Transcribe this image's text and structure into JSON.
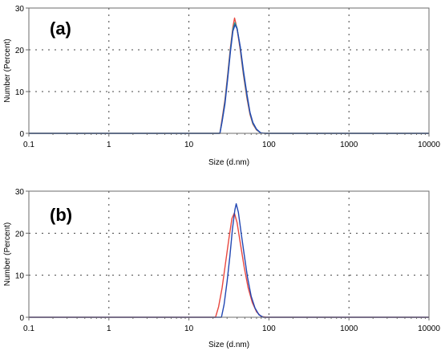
{
  "chart_data": [
    {
      "type": "line",
      "panel_label": "(a)",
      "xlabel": "Size (d.nm)",
      "ylabel": "Number (Percent)",
      "x_scale": "log",
      "xlim": [
        0.1,
        10000
      ],
      "ylim": [
        0,
        30
      ],
      "x_ticks": [
        "0.1",
        "1",
        "10",
        "100",
        "1000",
        "10000"
      ],
      "x_tick_values": [
        0.1,
        1,
        10,
        100,
        1000,
        10000
      ],
      "y_ticks": [
        "0",
        "10",
        "20",
        "30"
      ],
      "y_tick_values": [
        0,
        10,
        20,
        30
      ],
      "grid": true,
      "series": [
        {
          "color": "#e8473f",
          "points": [
            [
              0.1,
              0
            ],
            [
              20,
              0
            ],
            [
              24.4,
              0
            ],
            [
              26,
              3.5
            ],
            [
              28.2,
              8
            ],
            [
              30.5,
              14
            ],
            [
              33,
              20.5
            ],
            [
              35.5,
              25.5
            ],
            [
              37.2,
              27.6
            ],
            [
              40,
              25
            ],
            [
              43.8,
              20
            ],
            [
              48,
              14
            ],
            [
              53,
              8.5
            ],
            [
              58,
              4.5
            ],
            [
              63,
              2.2
            ],
            [
              70,
              0.8
            ],
            [
              79,
              0.1
            ],
            [
              90,
              0
            ],
            [
              10000,
              0
            ]
          ]
        },
        {
          "color": "#2a9d8f",
          "points": [
            [
              0.1,
              0
            ],
            [
              20,
              0
            ],
            [
              24.4,
              0
            ],
            [
              26,
              3
            ],
            [
              28.2,
              7.5
            ],
            [
              30.5,
              13.5
            ],
            [
              33,
              20
            ],
            [
              35.5,
              25
            ],
            [
              37.6,
              26.5
            ],
            [
              40,
              25.2
            ],
            [
              43.8,
              20.5
            ],
            [
              48,
              14.5
            ],
            [
              53,
              9
            ],
            [
              58,
              4.8
            ],
            [
              63,
              2.4
            ],
            [
              70,
              0.9
            ],
            [
              79,
              0.1
            ],
            [
              90,
              0
            ],
            [
              10000,
              0
            ]
          ]
        },
        {
          "color": "#2247b3",
          "points": [
            [
              0.1,
              0
            ],
            [
              20,
              0
            ],
            [
              24.4,
              0
            ],
            [
              26,
              2.8
            ],
            [
              28.2,
              7
            ],
            [
              30.5,
              13
            ],
            [
              33,
              19.5
            ],
            [
              35.5,
              24.5
            ],
            [
              37.8,
              26
            ],
            [
              40,
              25
            ],
            [
              43.8,
              20.8
            ],
            [
              48,
              15
            ],
            [
              53,
              9.5
            ],
            [
              58,
              5
            ],
            [
              63,
              2.6
            ],
            [
              70,
              1
            ],
            [
              79,
              0.1
            ],
            [
              90,
              0
            ],
            [
              10000,
              0
            ]
          ]
        }
      ]
    },
    {
      "type": "line",
      "panel_label": "(b)",
      "xlabel": "Size (d.nm)",
      "ylabel": "Number (Percent)",
      "x_scale": "log",
      "xlim": [
        0.1,
        10000
      ],
      "ylim": [
        0,
        30
      ],
      "x_ticks": [
        "0.1",
        "1",
        "10",
        "100",
        "1000",
        "10000"
      ],
      "x_tick_values": [
        0.1,
        1,
        10,
        100,
        1000,
        10000
      ],
      "y_ticks": [
        "0",
        "10",
        "20",
        "30"
      ],
      "y_tick_values": [
        0,
        10,
        20,
        30
      ],
      "grid": true,
      "series": [
        {
          "color": "#e8473f",
          "points": [
            [
              0.1,
              0
            ],
            [
              18,
              0
            ],
            [
              21.5,
              0
            ],
            [
              23.5,
              2.5
            ],
            [
              26,
              7
            ],
            [
              28.5,
              12.5
            ],
            [
              31.5,
              18.5
            ],
            [
              34.5,
              23.5
            ],
            [
              37,
              24.8
            ],
            [
              40,
              22.5
            ],
            [
              44,
              17.5
            ],
            [
              49,
              12
            ],
            [
              55,
              7
            ],
            [
              62,
              3.5
            ],
            [
              70,
              1.3
            ],
            [
              80,
              0.2
            ],
            [
              92,
              0
            ],
            [
              10000,
              0
            ]
          ]
        },
        {
          "color": "#2247b3",
          "points": [
            [
              0.1,
              0
            ],
            [
              22,
              0
            ],
            [
              25.5,
              0
            ],
            [
              27.5,
              3
            ],
            [
              30,
              8.5
            ],
            [
              32.5,
              14.5
            ],
            [
              35,
              21
            ],
            [
              37.5,
              25.5
            ],
            [
              39,
              27
            ],
            [
              41.5,
              25
            ],
            [
              45,
              20
            ],
            [
              49,
              15
            ],
            [
              54,
              9.5
            ],
            [
              60,
              5
            ],
            [
              67,
              2.2
            ],
            [
              75,
              0.6
            ],
            [
              85,
              0
            ],
            [
              10000,
              0
            ]
          ]
        }
      ]
    }
  ]
}
